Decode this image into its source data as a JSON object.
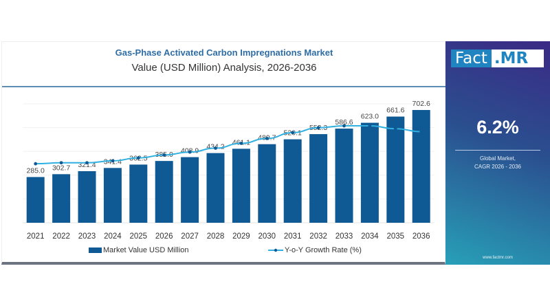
{
  "header": {
    "title": "Gas-Phase Activated Carbon Impregnations Market",
    "subtitle": "Value (USD Million) Analysis, 2026-2036"
  },
  "sidebar": {
    "logo_left": "Fact",
    "logo_right": ".MR",
    "cagr_value": "6.2%",
    "cagr_label_line1": "Global Market,",
    "cagr_label_line2": "CAGR 2026 - 2036",
    "website": "www.factmr.com"
  },
  "colors": {
    "bar": "#0f5a94",
    "line": "#2fb0e0",
    "title": "#2e6da4"
  },
  "chart_data": {
    "type": "bar",
    "title": "Gas-Phase Activated Carbon Impregnations Market",
    "subtitle": "Value (USD Million) Analysis, 2026-2036",
    "xlabel": "",
    "ylabel": "",
    "categories": [
      "2021",
      "2022",
      "2023",
      "2024",
      "2025",
      "2026",
      "2027",
      "2028",
      "2029",
      "2030",
      "2031",
      "2032",
      "2033",
      "2034",
      "2035",
      "2036"
    ],
    "series": [
      {
        "name": "Market Value USD Million",
        "type": "bar",
        "values": [
          285.0,
          302.7,
          321.4,
          341.4,
          362.5,
          385.0,
          408.9,
          434.2,
          461.1,
          489.7,
          520.1,
          552.3,
          586.6,
          623.0,
          661.6,
          702.6
        ],
        "labels": [
          "285.0",
          "302.7",
          "321.4",
          "341.4",
          "362.5",
          "385.0",
          "408.9",
          "434.2",
          "461.1",
          "489.7",
          "520.1",
          "552.3",
          "586.6",
          "623.0",
          "661.6",
          "702.6"
        ]
      },
      {
        "name": "Y-o-Y Growth Rate (%)",
        "type": "line",
        "note": "unlabeled secondary series; relative level estimated (index, 0-100)",
        "values": [
          42,
          43,
          43,
          45,
          48,
          51,
          54,
          58,
          63,
          68,
          74,
          79,
          81,
          81,
          78,
          75
        ]
      }
    ],
    "ylim": [
      0,
      750
    ],
    "grid": true,
    "legend": "bottom"
  }
}
